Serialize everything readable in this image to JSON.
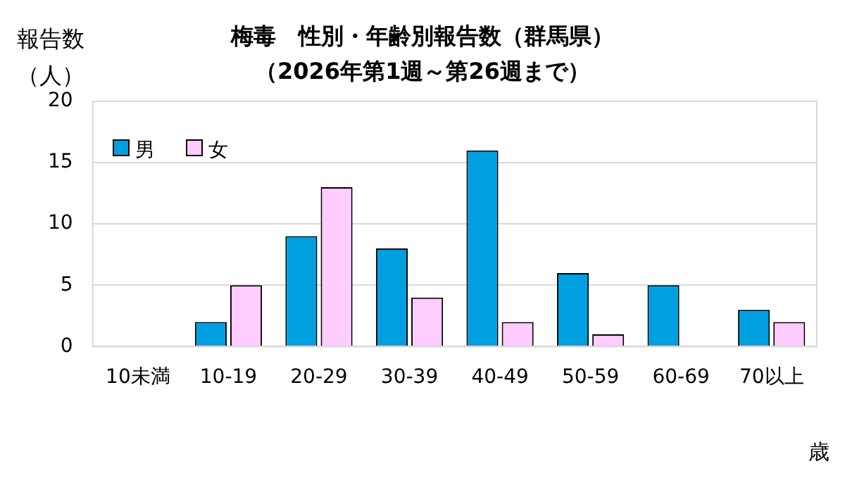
{
  "chart_data": {
    "type": "bar",
    "title": "梅毒　性別・年齢別報告数（群馬県）",
    "subtitle": "（2026年第1週～第26週まで）",
    "ylabel": "報告数（人）",
    "xlabel": "歳",
    "categories": [
      "10未満",
      "10-19",
      "20-29",
      "30-39",
      "40-49",
      "50-59",
      "60-69",
      "70以上"
    ],
    "series": [
      {
        "name": "男",
        "color": "#00a0e0",
        "values": [
          0,
          2,
          9,
          8,
          16,
          6,
          5,
          3
        ]
      },
      {
        "name": "女",
        "color": "#ffccff",
        "values": [
          0,
          5,
          13,
          4,
          2,
          1,
          0,
          2
        ]
      }
    ],
    "ylim": [
      0,
      20
    ],
    "yticks": [
      0,
      5,
      10,
      15,
      20
    ],
    "grid": "y",
    "legend": "top left"
  }
}
